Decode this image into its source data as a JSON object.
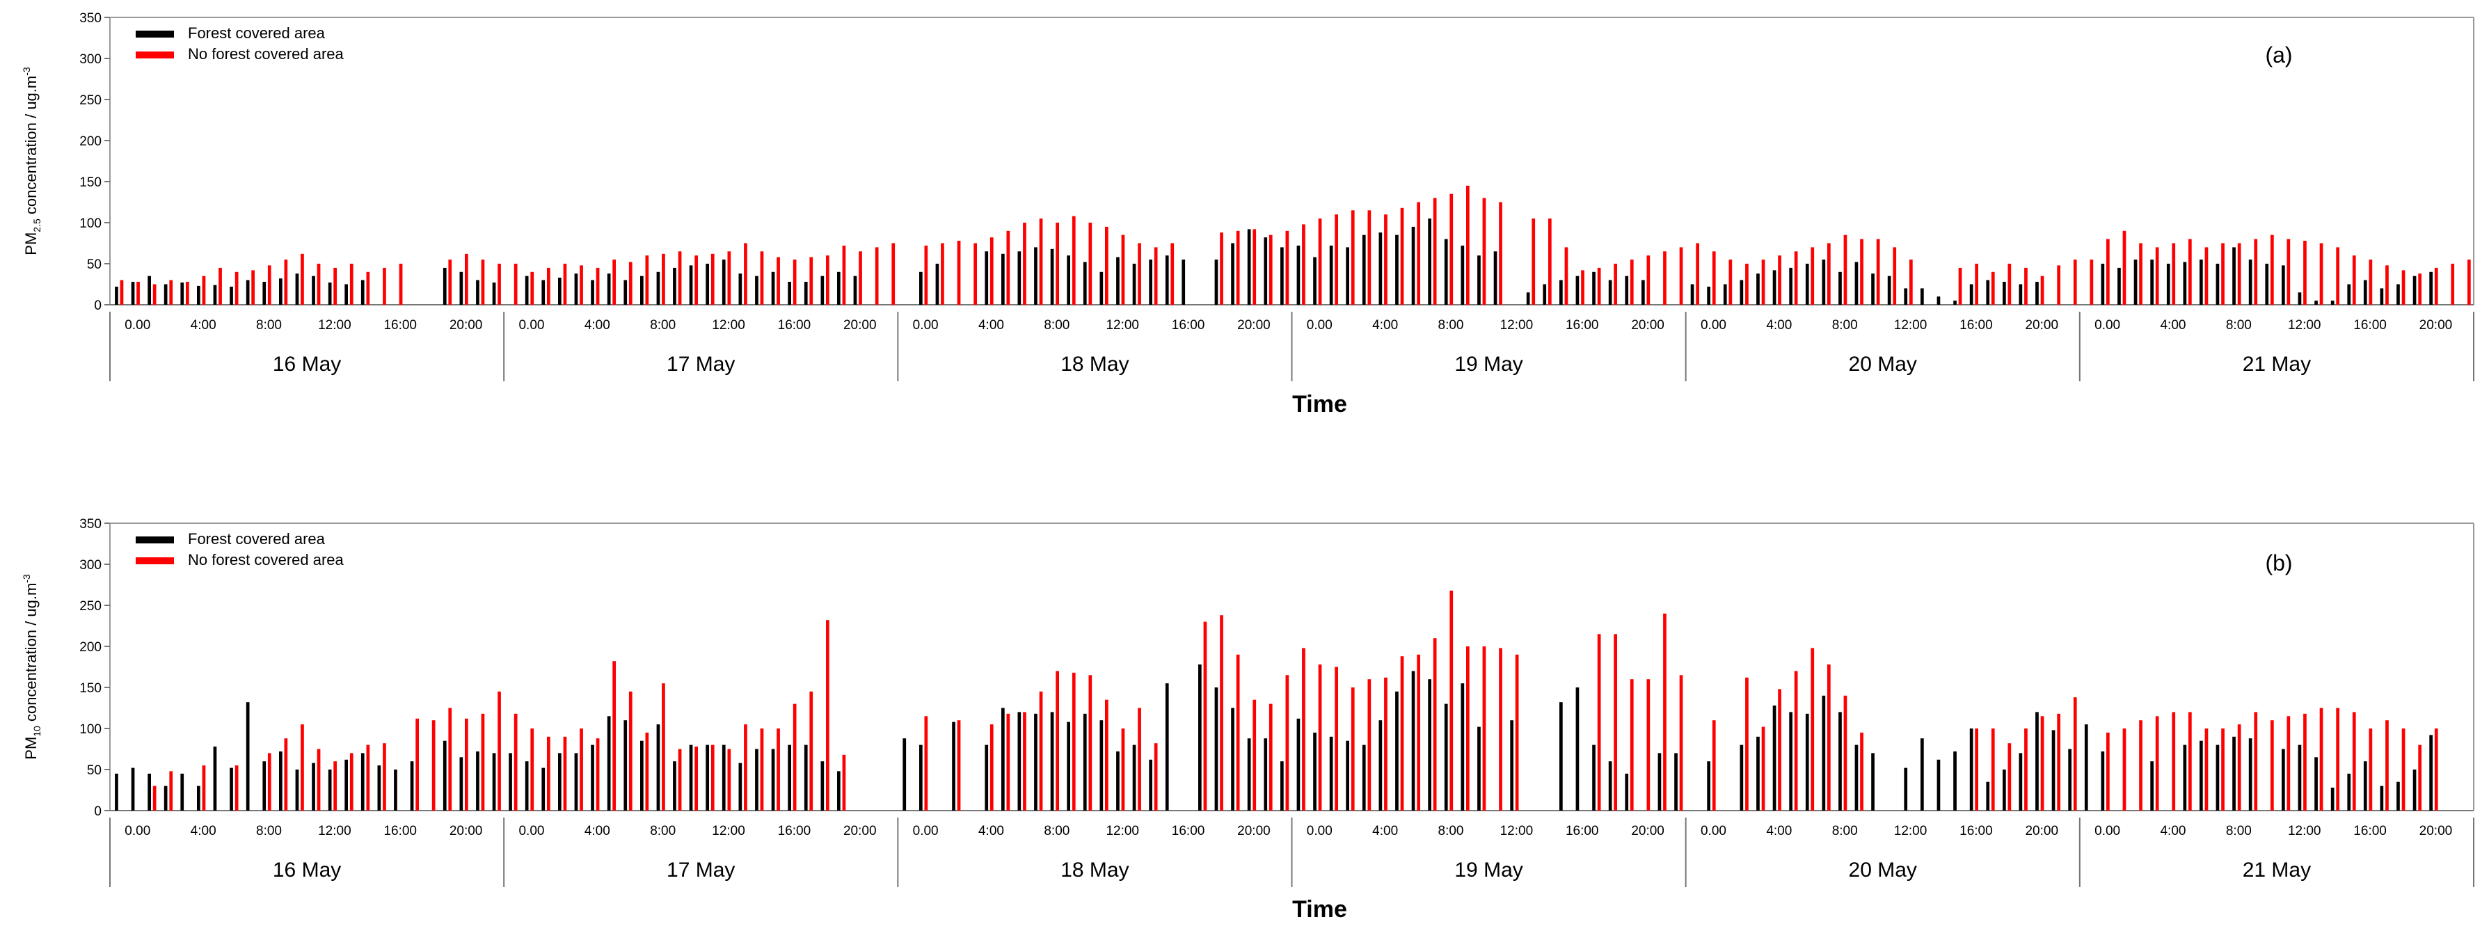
{
  "chart_data": [
    {
      "type": "bar",
      "panel_label": "(a)",
      "ylabel_prefix": "PM",
      "ylabel_subscript": "2.5",
      "ylabel_suffix": " concentration / ug.m",
      "ylabel_superscript": "-3",
      "xlabel": "Time",
      "ylim": [
        0,
        350
      ],
      "yticks": [
        "0",
        "50",
        "100",
        "150",
        "200",
        "250",
        "300",
        "350"
      ],
      "grid": false,
      "legend_position": "top-left",
      "hour_tick_labels": [
        "0.00",
        "4:00",
        "8:00",
        "12:00",
        "16:00",
        "20:00"
      ],
      "days": [
        "16 May",
        "17 May",
        "18 May",
        "19 May",
        "20 May",
        "21 May"
      ],
      "legend": [
        {
          "name": "Forest covered area",
          "color": "#000000"
        },
        {
          "name": "No forest covered area",
          "color": "#ff0000"
        }
      ],
      "series": [
        {
          "name": "Forest covered area",
          "color": "#000000",
          "values": [
            22,
            28,
            35,
            25,
            27,
            23,
            24,
            22,
            30,
            28,
            32,
            38,
            35,
            27,
            25,
            30,
            null,
            null,
            null,
            null,
            45,
            40,
            30,
            27,
            null,
            35,
            30,
            33,
            38,
            30,
            38,
            30,
            35,
            40,
            45,
            48,
            50,
            55,
            38,
            35,
            40,
            28,
            28,
            35,
            40,
            35,
            null,
            null,
            null,
            40,
            50,
            null,
            null,
            65,
            62,
            65,
            70,
            68,
            60,
            52,
            40,
            58,
            50,
            55,
            60,
            55,
            null,
            55,
            75,
            92,
            82,
            70,
            72,
            58,
            72,
            70,
            85,
            88,
            85,
            95,
            105,
            80,
            72,
            60,
            65,
            null,
            15,
            25,
            30,
            35,
            40,
            30,
            35,
            30,
            null,
            null,
            25,
            22,
            25,
            30,
            38,
            42,
            45,
            50,
            55,
            40,
            52,
            38,
            35,
            20,
            20,
            10,
            5,
            25,
            30,
            28,
            25,
            28,
            null,
            null,
            null,
            50,
            45,
            55,
            55,
            50,
            52,
            55,
            50,
            70,
            55,
            50,
            48,
            15,
            5,
            5,
            25,
            30,
            20,
            25,
            35,
            40,
            null,
            null
          ]
        },
        {
          "name": "No forest covered area",
          "color": "#ff0000",
          "values": [
            30,
            28,
            25,
            30,
            28,
            35,
            45,
            40,
            42,
            48,
            55,
            62,
            50,
            45,
            50,
            40,
            45,
            50,
            null,
            null,
            55,
            62,
            55,
            50,
            50,
            40,
            45,
            50,
            48,
            45,
            55,
            52,
            60,
            62,
            65,
            60,
            62,
            65,
            75,
            65,
            58,
            55,
            58,
            60,
            72,
            65,
            70,
            75,
            null,
            72,
            75,
            78,
            75,
            82,
            90,
            100,
            105,
            100,
            108,
            100,
            95,
            85,
            75,
            70,
            75,
            null,
            null,
            88,
            90,
            92,
            85,
            90,
            98,
            105,
            110,
            115,
            115,
            110,
            118,
            125,
            130,
            135,
            145,
            130,
            125,
            null,
            105,
            105,
            70,
            42,
            45,
            50,
            55,
            60,
            65,
            70,
            75,
            65,
            55,
            50,
            55,
            60,
            65,
            70,
            75,
            85,
            80,
            80,
            70,
            55,
            null,
            null,
            45,
            50,
            40,
            50,
            45,
            35,
            48,
            55,
            55,
            80,
            90,
            75,
            70,
            75,
            80,
            70,
            75,
            75,
            80,
            85,
            80,
            78,
            75,
            70,
            60,
            55,
            48,
            42,
            38,
            45,
            50,
            55
          ]
        }
      ]
    },
    {
      "type": "bar",
      "panel_label": "(b)",
      "ylabel_prefix": "PM",
      "ylabel_subscript": "10",
      "ylabel_suffix": " concentration / ug.m",
      "ylabel_superscript": "-3",
      "xlabel": "Time",
      "ylim": [
        0,
        350
      ],
      "yticks": [
        "0",
        "50",
        "100",
        "150",
        "200",
        "250",
        "300",
        "350"
      ],
      "grid": false,
      "legend_position": "top-left",
      "hour_tick_labels": [
        "0.00",
        "4:00",
        "8:00",
        "12:00",
        "16:00",
        "20:00"
      ],
      "days": [
        "16 May",
        "17 May",
        "18 May",
        "19 May",
        "20 May",
        "21 May"
      ],
      "legend": [
        {
          "name": "Forest covered area",
          "color": "#000000"
        },
        {
          "name": "No forest covered area",
          "color": "#ff0000"
        }
      ],
      "series": [
        {
          "name": "Forest covered area",
          "color": "#000000",
          "values": [
            45,
            52,
            45,
            30,
            45,
            30,
            78,
            52,
            132,
            60,
            72,
            50,
            58,
            50,
            62,
            70,
            55,
            50,
            60,
            null,
            85,
            65,
            72,
            70,
            70,
            60,
            52,
            70,
            70,
            80,
            115,
            110,
            85,
            105,
            60,
            80,
            80,
            80,
            58,
            75,
            75,
            80,
            80,
            60,
            48,
            null,
            null,
            null,
            88,
            80,
            null,
            108,
            null,
            80,
            125,
            120,
            118,
            120,
            108,
            118,
            110,
            72,
            80,
            62,
            155,
            null,
            178,
            150,
            125,
            88,
            88,
            60,
            112,
            95,
            90,
            85,
            80,
            110,
            145,
            170,
            160,
            130,
            155,
            102,
            null,
            110,
            null,
            null,
            132,
            150,
            80,
            60,
            45,
            null,
            70,
            70,
            null,
            60,
            null,
            80,
            90,
            128,
            120,
            118,
            140,
            120,
            80,
            70,
            null,
            52,
            88,
            62,
            72,
            100,
            35,
            50,
            70,
            120,
            98,
            75,
            105,
            72,
            null,
            null,
            60,
            null,
            80,
            85,
            80,
            90,
            88,
            null,
            75,
            80,
            65,
            28,
            45,
            60,
            30,
            35,
            50,
            92
          ]
        },
        {
          "name": "No forest covered area",
          "color": "#ff0000",
          "values": [
            null,
            null,
            30,
            48,
            null,
            55,
            null,
            55,
            null,
            70,
            88,
            105,
            75,
            60,
            70,
            80,
            82,
            null,
            112,
            110,
            125,
            112,
            118,
            145,
            118,
            100,
            90,
            90,
            100,
            88,
            182,
            145,
            95,
            155,
            75,
            78,
            80,
            75,
            105,
            100,
            100,
            130,
            145,
            232,
            68,
            null,
            null,
            null,
            null,
            115,
            null,
            110,
            null,
            105,
            118,
            120,
            145,
            170,
            168,
            165,
            135,
            100,
            125,
            82,
            null,
            null,
            230,
            238,
            190,
            135,
            130,
            165,
            198,
            178,
            175,
            150,
            160,
            162,
            188,
            190,
            210,
            268,
            200,
            200,
            198,
            190,
            null,
            null,
            null,
            null,
            215,
            215,
            160,
            160,
            240,
            165,
            null,
            110,
            null,
            162,
            102,
            148,
            170,
            198,
            178,
            140,
            95,
            null,
            null,
            null,
            null,
            null,
            null,
            100,
            100,
            82,
            100,
            115,
            118,
            138,
            null,
            95,
            100,
            110,
            115,
            120,
            120,
            100,
            100,
            105,
            120,
            110,
            115,
            118,
            125,
            125,
            120,
            100,
            110,
            100,
            80,
            100
          ]
        }
      ]
    }
  ]
}
